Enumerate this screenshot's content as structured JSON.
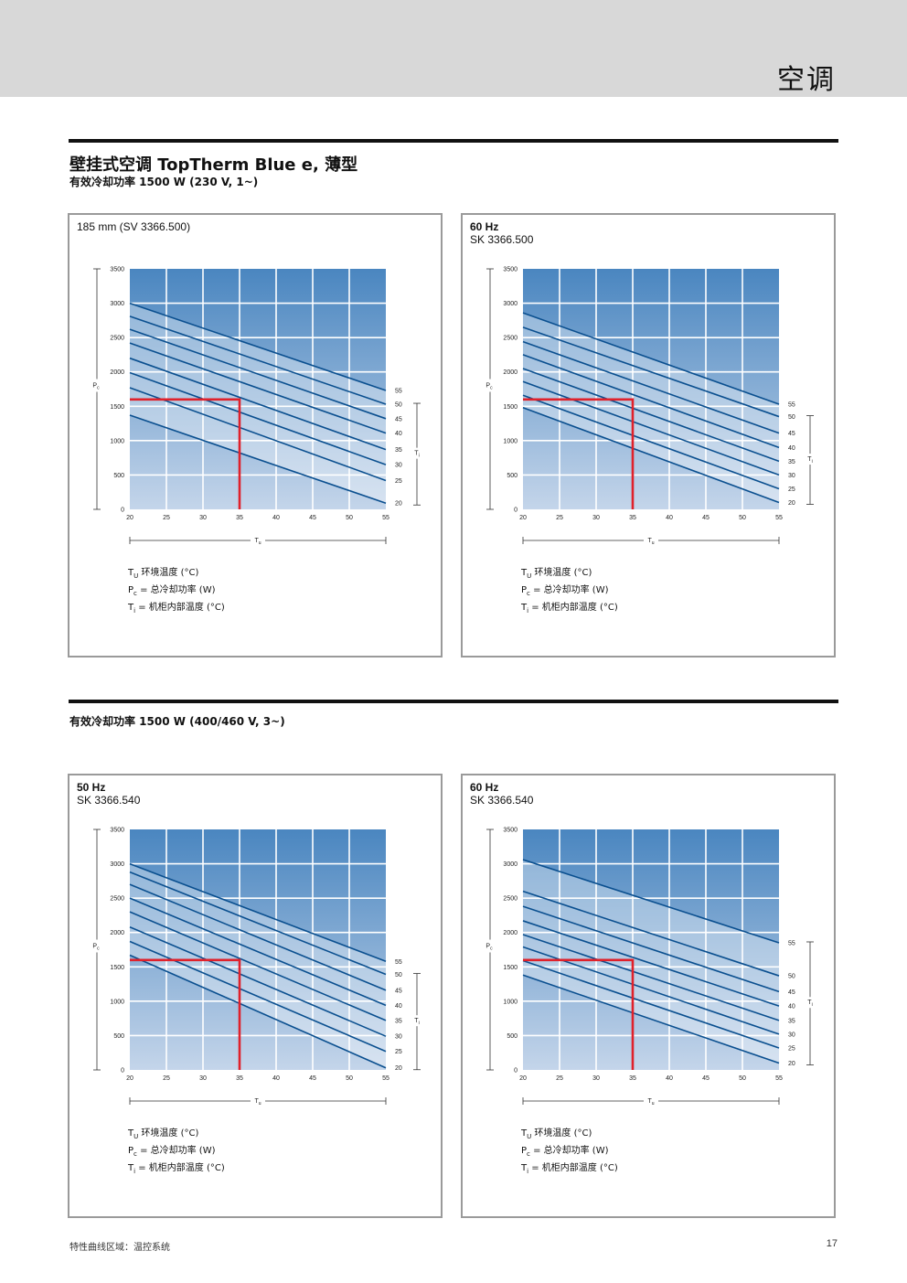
{
  "header": {
    "section": "空调"
  },
  "title": "壁挂式空调 TopTherm Blue e, 薄型",
  "sections": [
    {
      "subtitle": "有效冷却功率 1500 W (230 V, 1~)"
    },
    {
      "subtitle": "有效冷却功率 1500 W (400/460 V, 3~)"
    }
  ],
  "panels": [
    {
      "title": "185 mm (SV 3366.500)",
      "model": ""
    },
    {
      "title": "60 Hz",
      "model": "SK 3366.500"
    },
    {
      "title": "50 Hz",
      "model": "SK 3366.540"
    },
    {
      "title": "60 Hz",
      "model": "SK 3366.540"
    }
  ],
  "legend": {
    "tu_symbol": "T",
    "tu_sub": "U",
    "tu_text": " 环境温度 (°C)",
    "pc_symbol": "P",
    "pc_sub": "c",
    "pc_text": " = 总冷却功率 (W)",
    "ti_symbol": "T",
    "ti_sub": "i",
    "ti_text": " = 机柜内部温度 (°C)"
  },
  "axis_labels": {
    "x_symbol": "T",
    "x_sub": "u",
    "y_symbol": "P",
    "y_sub": "c",
    "ti_symbol": "T",
    "ti_sub": "i"
  },
  "colors": {
    "line": "#0a4f8f",
    "marker": "#e0212b",
    "grid_top": "#4a86c0",
    "grid_bottom": "#c4d5ea"
  },
  "chart_data": [
    {
      "type": "line",
      "x_range": [
        20,
        55
      ],
      "y_range": [
        0,
        3500
      ],
      "x_ticks": [
        20,
        25,
        30,
        35,
        40,
        45,
        50,
        55
      ],
      "y_ticks": [
        0,
        500,
        1000,
        1500,
        2000,
        2500,
        3000,
        3500
      ],
      "series": [
        {
          "name": "55",
          "x": [
            20,
            55
          ],
          "y": [
            3000,
            1730
          ]
        },
        {
          "name": "50",
          "x": [
            20,
            55
          ],
          "y": [
            2810,
            1530
          ]
        },
        {
          "name": "45",
          "x": [
            20,
            55
          ],
          "y": [
            2620,
            1320
          ]
        },
        {
          "name": "40",
          "x": [
            20,
            55
          ],
          "y": [
            2420,
            1110
          ]
        },
        {
          "name": "35",
          "x": [
            20,
            55
          ],
          "y": [
            2200,
            870
          ]
        },
        {
          "name": "30",
          "x": [
            20,
            55
          ],
          "y": [
            1990,
            650
          ]
        },
        {
          "name": "25",
          "x": [
            20,
            55
          ],
          "y": [
            1770,
            420
          ]
        },
        {
          "name": "20",
          "x": [
            20,
            55
          ],
          "y": [
            1370,
            90
          ]
        }
      ],
      "marker": {
        "x": 35,
        "y": 1600
      },
      "ti_range": [
        20,
        50
      ],
      "right_labels": [
        "55",
        "50",
        "45",
        "40",
        "35",
        "30",
        "25",
        "20"
      ]
    },
    {
      "type": "line",
      "x_range": [
        20,
        55
      ],
      "y_range": [
        0,
        3500
      ],
      "x_ticks": [
        20,
        25,
        30,
        35,
        40,
        45,
        50,
        55
      ],
      "y_ticks": [
        0,
        500,
        1000,
        1500,
        2000,
        2500,
        3000,
        3500
      ],
      "series": [
        {
          "name": "55",
          "x": [
            20,
            55
          ],
          "y": [
            2860,
            1530
          ]
        },
        {
          "name": "50",
          "x": [
            20,
            55
          ],
          "y": [
            2650,
            1350
          ]
        },
        {
          "name": "45",
          "x": [
            20,
            55
          ],
          "y": [
            2440,
            1110
          ]
        },
        {
          "name": "40",
          "x": [
            20,
            55
          ],
          "y": [
            2250,
            900
          ]
        },
        {
          "name": "35",
          "x": [
            20,
            55
          ],
          "y": [
            2050,
            700
          ]
        },
        {
          "name": "30",
          "x": [
            20,
            55
          ],
          "y": [
            1860,
            500
          ]
        },
        {
          "name": "25",
          "x": [
            20,
            55
          ],
          "y": [
            1660,
            300
          ]
        },
        {
          "name": "20",
          "x": [
            20,
            55
          ],
          "y": [
            1480,
            100
          ]
        }
      ],
      "marker": {
        "x": 35,
        "y": 1600
      },
      "ti_range": [
        20,
        50
      ],
      "right_labels": [
        "55",
        "50",
        "45",
        "40",
        "35",
        "30",
        "25",
        "20"
      ]
    },
    {
      "type": "line",
      "x_range": [
        20,
        55
      ],
      "y_range": [
        0,
        3500
      ],
      "x_ticks": [
        20,
        25,
        30,
        35,
        40,
        45,
        50,
        55
      ],
      "y_ticks": [
        0,
        500,
        1000,
        1500,
        2000,
        2500,
        3000,
        3500
      ],
      "series": [
        {
          "name": "55",
          "x": [
            20,
            55
          ],
          "y": [
            3000,
            1580
          ]
        },
        {
          "name": "50",
          "x": [
            20,
            55
          ],
          "y": [
            2880,
            1390
          ]
        },
        {
          "name": "45",
          "x": [
            20,
            55
          ],
          "y": [
            2700,
            1160
          ]
        },
        {
          "name": "40",
          "x": [
            20,
            55
          ],
          "y": [
            2500,
            940
          ]
        },
        {
          "name": "35",
          "x": [
            20,
            55
          ],
          "y": [
            2300,
            720
          ]
        },
        {
          "name": "30",
          "x": [
            20,
            55
          ],
          "y": [
            2080,
            490
          ]
        },
        {
          "name": "25",
          "x": [
            20,
            55
          ],
          "y": [
            1870,
            270
          ]
        },
        {
          "name": "20",
          "x": [
            20,
            55
          ],
          "y": [
            1670,
            30
          ]
        }
      ],
      "marker": {
        "x": 35,
        "y": 1600
      },
      "ti_range": [
        20,
        50
      ],
      "right_labels": [
        "55",
        "50",
        "45",
        "40",
        "35",
        "30",
        "25",
        "20"
      ]
    },
    {
      "type": "line",
      "x_range": [
        20,
        55
      ],
      "y_range": [
        0,
        3500
      ],
      "x_ticks": [
        20,
        25,
        30,
        35,
        40,
        45,
        50,
        55
      ],
      "y_ticks": [
        0,
        500,
        1000,
        1500,
        2000,
        2500,
        3000,
        3500
      ],
      "series": [
        {
          "name": "55",
          "x": [
            20,
            55
          ],
          "y": [
            3060,
            1850
          ]
        },
        {
          "name": "50",
          "x": [
            20,
            55
          ],
          "y": [
            2600,
            1370
          ]
        },
        {
          "name": "45",
          "x": [
            20,
            55
          ],
          "y": [
            2380,
            1140
          ]
        },
        {
          "name": "40",
          "x": [
            20,
            55
          ],
          "y": [
            2170,
            930
          ]
        },
        {
          "name": "35",
          "x": [
            20,
            55
          ],
          "y": [
            1970,
            720
          ]
        },
        {
          "name": "30",
          "x": [
            20,
            55
          ],
          "y": [
            1790,
            520
          ]
        },
        {
          "name": "25",
          "x": [
            20,
            55
          ],
          "y": [
            1590,
            320
          ]
        },
        {
          "name": "20",
          "x": [
            20,
            55
          ],
          "y": [
            1380,
            100
          ]
        }
      ],
      "marker": {
        "x": 35,
        "y": 1600
      },
      "ti_range": [
        20,
        55
      ],
      "right_labels": [
        "55",
        "50",
        "45",
        "40",
        "35",
        "30",
        "25",
        "20"
      ]
    }
  ],
  "footer": {
    "left": "特性曲线区域：温控系统",
    "page": "17"
  }
}
